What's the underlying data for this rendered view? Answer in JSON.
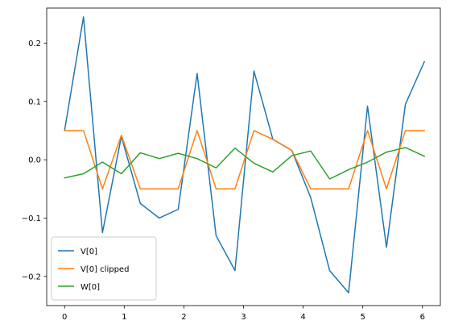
{
  "chart_data": {
    "type": "line",
    "title": "",
    "xlabel": "",
    "ylabel": "",
    "xlim": [
      -0.3,
      6.3
    ],
    "ylim": [
      -0.25,
      0.26
    ],
    "grid": false,
    "legend_position": "lower-left",
    "x_ticks": [
      0,
      1,
      2,
      3,
      4,
      5,
      6
    ],
    "x_tick_labels": [
      "0",
      "1",
      "2",
      "3",
      "4",
      "5",
      "6"
    ],
    "y_ticks": [
      -0.2,
      -0.1,
      0.0,
      0.1,
      0.2
    ],
    "y_tick_labels": [
      "−0.2",
      "−0.1",
      "0.0",
      "0.1",
      "0.2"
    ],
    "x": [
      0.0,
      0.317,
      0.635,
      0.952,
      1.27,
      1.587,
      1.905,
      2.222,
      2.54,
      2.857,
      3.175,
      3.492,
      3.81,
      4.127,
      4.444,
      4.762,
      5.079,
      5.397,
      5.714,
      6.032
    ],
    "series": [
      {
        "name": "V[0]",
        "color": "#1f77b4",
        "values": [
          0.05,
          0.245,
          -0.125,
          0.04,
          -0.075,
          -0.1,
          -0.085,
          0.148,
          -0.13,
          -0.19,
          0.152,
          0.035,
          0.016,
          -0.065,
          -0.19,
          -0.228,
          0.092,
          -0.15,
          0.095,
          0.168
        ]
      },
      {
        "name": "V[0] clipped",
        "color": "#ff7f0e",
        "values": [
          0.05,
          0.05,
          -0.05,
          0.042,
          -0.05,
          -0.05,
          -0.05,
          0.05,
          -0.05,
          -0.05,
          0.05,
          0.035,
          0.016,
          -0.05,
          -0.05,
          -0.05,
          0.05,
          -0.05,
          0.05,
          0.05
        ]
      },
      {
        "name": "W[0]",
        "color": "#2ca02c",
        "values": [
          -0.031,
          -0.024,
          -0.004,
          -0.024,
          0.012,
          0.002,
          0.011,
          0.002,
          -0.014,
          0.02,
          -0.006,
          -0.021,
          0.007,
          0.015,
          -0.033,
          -0.017,
          -0.004,
          0.013,
          0.021,
          0.006
        ]
      }
    ]
  }
}
